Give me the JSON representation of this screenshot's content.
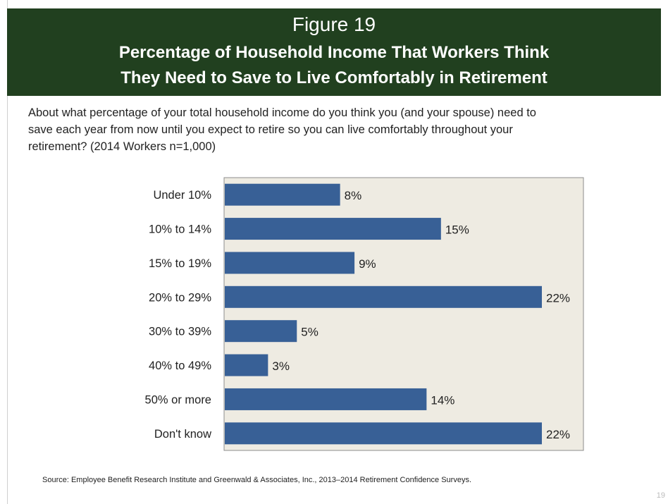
{
  "figure_label": "Figure 19",
  "title_lines": [
    "Percentage of Household Income That Workers Think",
    "They Need to Save to Live Comfortably in Retirement"
  ],
  "question_lines": [
    "About what percentage of your total household income do you think you (and your spouse) need to",
    "save each year from now until you expect to retire so you can live comfortably throughout your",
    "retirement? (2014 Workers n=1,000)"
  ],
  "source": "Source:  Employee Benefit Research Institute and Greenwald & Associates, Inc., 2013–2014 Retirement Confidence Surveys.",
  "page_number": "19",
  "colors": {
    "banner": "#21401f",
    "bar": "#386096",
    "plot_background": "#eeebe2"
  },
  "chart_data": {
    "type": "bar",
    "orientation": "horizontal",
    "title": "Percentage of Household Income That Workers Think They Need to Save to Live Comfortably in Retirement",
    "categories": [
      "Under 10%",
      "10% to 14%",
      "15% to 19%",
      "20% to 29%",
      "30% to 39%",
      "40% to 49%",
      "50% or more",
      "Don't know"
    ],
    "values": [
      8,
      15,
      9,
      22,
      5,
      3,
      14,
      22
    ],
    "value_labels": [
      "8%",
      "15%",
      "9%",
      "22%",
      "5%",
      "3%",
      "14%",
      "22%"
    ],
    "xlim": [
      0,
      25
    ],
    "grid": false,
    "legend": "none"
  }
}
